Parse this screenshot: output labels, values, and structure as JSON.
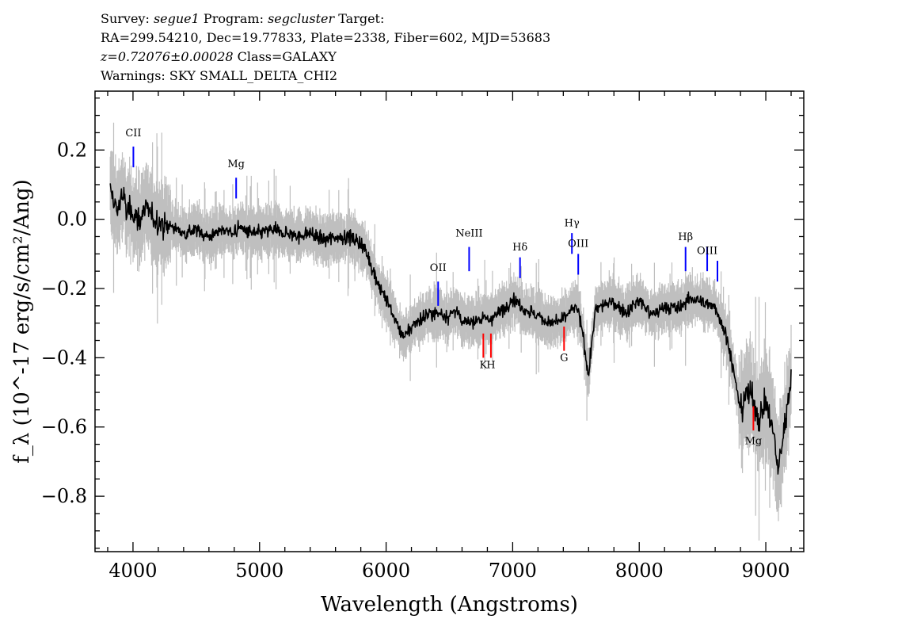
{
  "header": {
    "survey_label": "Survey:",
    "survey": "segue1",
    "program_label": "Program:",
    "program": "segcluster",
    "target_label": "Target:",
    "line2": "RA=299.54210, Dec=19.77833, Plate=2338, Fiber=602, MJD=53683",
    "redshift": "z=0.72076±0.00028",
    "class": "Class=GALAXY",
    "warnings": "Warnings: SKY SMALL_DELTA_CHI2"
  },
  "colors": {
    "flux": "#000000",
    "error": "#bfbfbf",
    "emission_line": "#0000ff",
    "absorption_line": "#ff0000"
  },
  "chart_data": {
    "type": "line",
    "xlabel": "Wavelength (Angstroms)",
    "ylabel": "f_λ (10^-17 erg/s/cm²/Ang)",
    "xlim": [
      3700,
      9300
    ],
    "ylim": [
      -0.96,
      0.37
    ],
    "x_ticks": [
      4000,
      5000,
      6000,
      7000,
      8000,
      9000
    ],
    "y_ticks": [
      0.2,
      0.0,
      -0.2,
      -0.4,
      -0.6,
      -0.8
    ],
    "x_tick_labels": [
      "4000",
      "5000",
      "6000",
      "7000",
      "8000",
      "9000"
    ],
    "y_tick_labels": [
      "0.2",
      "0.0",
      "−0.2",
      "−0.4",
      "−0.6",
      "−0.8"
    ],
    "series": [
      {
        "style": "flux",
        "x": [
          3820,
          3850,
          3880,
          3910,
          3950,
          4000,
          4050,
          4100,
          4200,
          4300,
          4400,
          4500,
          4600,
          4700,
          4800,
          4850,
          4900,
          5000,
          5100,
          5200,
          5300,
          5400,
          5500,
          5600,
          5700,
          5750,
          5800,
          5850,
          5900,
          5950,
          6000,
          6050,
          6100,
          6150,
          6200,
          6300,
          6400,
          6500,
          6550,
          6600,
          6700,
          6800,
          6900,
          7000,
          7100,
          7200,
          7300,
          7400,
          7500,
          7550,
          7600,
          7650,
          7700,
          7800,
          7900,
          8000,
          8100,
          8200,
          8300,
          8400,
          8500,
          8600,
          8700,
          8750,
          8800,
          8850,
          8900,
          8950,
          9000,
          9050,
          9100,
          9150,
          9200
        ],
        "y": [
          0.08,
          0.05,
          0.02,
          0.08,
          0.02,
          0.02,
          0.0,
          0.03,
          -0.01,
          -0.02,
          -0.04,
          -0.03,
          -0.05,
          -0.03,
          -0.04,
          -0.02,
          -0.04,
          -0.04,
          -0.03,
          -0.04,
          -0.05,
          -0.04,
          -0.06,
          -0.05,
          -0.05,
          -0.06,
          -0.07,
          -0.1,
          -0.15,
          -0.2,
          -0.23,
          -0.27,
          -0.32,
          -0.34,
          -0.31,
          -0.28,
          -0.27,
          -0.28,
          -0.26,
          -0.3,
          -0.29,
          -0.29,
          -0.27,
          -0.23,
          -0.26,
          -0.28,
          -0.3,
          -0.29,
          -0.25,
          -0.32,
          -0.45,
          -0.27,
          -0.25,
          -0.24,
          -0.27,
          -0.23,
          -0.28,
          -0.25,
          -0.26,
          -0.23,
          -0.24,
          -0.25,
          -0.35,
          -0.45,
          -0.55,
          -0.5,
          -0.52,
          -0.58,
          -0.52,
          -0.6,
          -0.72,
          -0.6,
          -0.45
        ]
      }
    ],
    "spectral_lines": [
      {
        "label": "CII",
        "wavelength": 4003,
        "type": "emission",
        "label_y": 0.24,
        "bar_top": 0.21,
        "bar_bottom": 0.15
      },
      {
        "label": "Mg",
        "wavelength": 4815,
        "type": "emission",
        "label_y": 0.15,
        "bar_top": 0.12,
        "bar_bottom": 0.06
      },
      {
        "label": "OII",
        "wavelength": 6411,
        "type": "emission",
        "label_y": -0.15,
        "bar_top": -0.18,
        "bar_bottom": -0.25
      },
      {
        "label": "NeIII",
        "wavelength": 6656,
        "type": "emission",
        "label_y": -0.05,
        "bar_top": -0.08,
        "bar_bottom": -0.15
      },
      {
        "label": "Hδ",
        "wavelength": 7058,
        "type": "emission",
        "label_y": -0.09,
        "bar_top": -0.11,
        "bar_bottom": -0.17
      },
      {
        "label": "Hγ",
        "wavelength": 7468,
        "type": "emission",
        "label_y": -0.02,
        "bar_top": -0.04,
        "bar_bottom": -0.1
      },
      {
        "label": "OIII",
        "wavelength": 7518,
        "type": "emission",
        "label_y": -0.08,
        "bar_top": -0.1,
        "bar_bottom": -0.16
      },
      {
        "label": "Hβ",
        "wavelength": 8366,
        "type": "emission",
        "label_y": -0.06,
        "bar_top": -0.08,
        "bar_bottom": -0.15
      },
      {
        "label": "OIII",
        "wavelength": 8537,
        "type": "emission",
        "label_y": -0.1,
        "bar_top": -0.08,
        "bar_bottom": -0.15
      },
      {
        "label": "",
        "wavelength": 8618,
        "type": "emission",
        "bar_top": -0.12,
        "bar_bottom": -0.18
      },
      {
        "label": "K",
        "wavelength": 6768,
        "type": "absorption",
        "label_y": -0.43,
        "bar_top": -0.33,
        "bar_bottom": -0.4
      },
      {
        "label": "H",
        "wavelength": 6828,
        "type": "absorption",
        "label_y": -0.43,
        "bar_top": -0.33,
        "bar_bottom": -0.4
      },
      {
        "label": "G",
        "wavelength": 7406,
        "type": "absorption",
        "label_y": -0.41,
        "bar_top": -0.31,
        "bar_bottom": -0.38
      },
      {
        "label": "Mg",
        "wavelength": 8902,
        "type": "absorption",
        "label_y": -0.65,
        "bar_top": -0.54,
        "bar_bottom": -0.61
      }
    ]
  }
}
